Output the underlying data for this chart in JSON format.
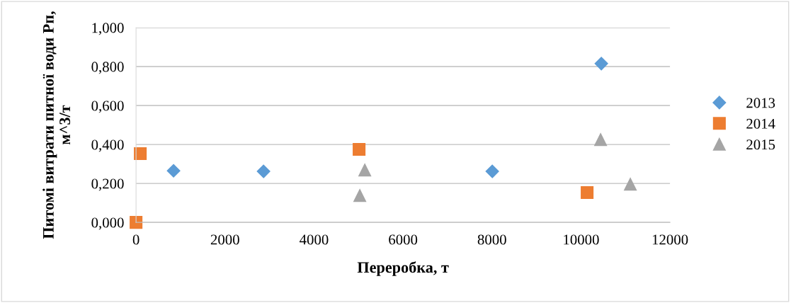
{
  "chart_data": {
    "type": "scatter",
    "xlabel": "Переробка, т",
    "ylabel": "Питомі витрати питної води Рп, м^3/т",
    "xlim": [
      0,
      12000
    ],
    "xticks": [
      0,
      2000,
      4000,
      6000,
      8000,
      10000,
      12000
    ],
    "ylim": [
      0,
      1.0
    ],
    "yticks": [
      {
        "value": 0,
        "label": "0,000"
      },
      {
        "value": 0.2,
        "label": "0,200"
      },
      {
        "value": 0.4,
        "label": "0,400"
      },
      {
        "value": 0.6,
        "label": "0,600"
      },
      {
        "value": 0.8,
        "label": "0,800"
      },
      {
        "value": 1.0,
        "label": "1,000"
      }
    ],
    "grid": "y",
    "legend": "right",
    "series": [
      {
        "name": "2013",
        "color": "#5b9bd5",
        "marker": "diamond",
        "x": [
          843,
          2865,
          8006,
          10457
        ],
        "values": [
          0.265,
          0.262,
          0.262,
          0.815
        ]
      },
      {
        "name": "2014",
        "color": "#ed7d31",
        "marker": "square",
        "x": [
          95,
          0,
          5013,
          10138
        ],
        "values": [
          0.353,
          0,
          0.375,
          0.153
        ]
      },
      {
        "name": "2015",
        "color": "#a5a5a5",
        "marker": "triangle",
        "x": [
          5141,
          5029,
          10441,
          11109
        ],
        "values": [
          0.269,
          0.138,
          0.425,
          0.196
        ]
      }
    ]
  }
}
